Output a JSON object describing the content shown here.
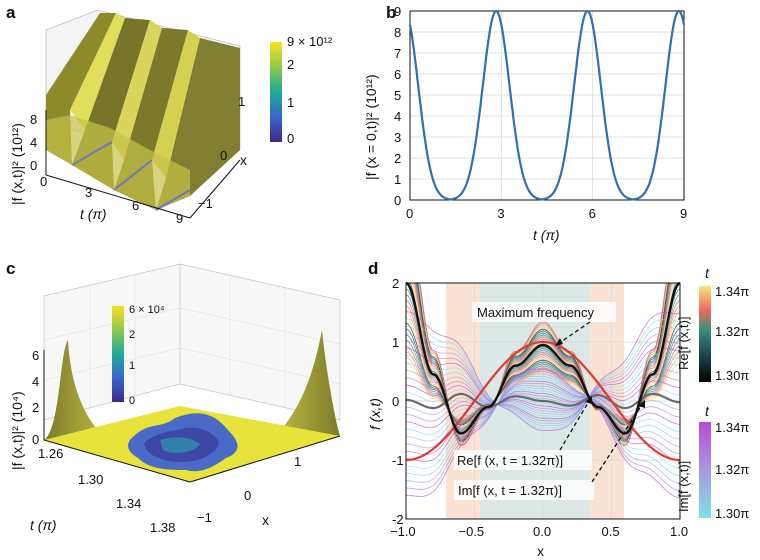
{
  "panels": {
    "a": {
      "letter": "a",
      "ylabel": "|f (x,t)|² (10¹²)",
      "xlabel": "t (π)",
      "x_axis_label": "x",
      "t_ticks": [
        "0",
        "3",
        "6",
        "9"
      ],
      "z_ticks": [
        "0",
        "4",
        "8"
      ],
      "x_ticks": [
        "−1",
        "0",
        "1"
      ],
      "colorbar": {
        "top": "9 × 10¹²",
        "ticks": [
          "2",
          "1",
          "0"
        ]
      }
    },
    "b": {
      "letter": "b",
      "ylabel": "|f (x = 0,t)|² (10¹²)",
      "xlabel": "t (π)"
    },
    "c": {
      "letter": "c",
      "ylabel": "|f (x,t)|² (10⁴)",
      "xlabel": "t (π)",
      "x_axis_label": "x",
      "t_ticks": [
        "1.26",
        "1.30",
        "1.34",
        "1.38"
      ],
      "z_ticks": [
        "0",
        "2",
        "4",
        "6"
      ],
      "x_ticks": [
        "−1",
        "0",
        "1"
      ],
      "colorbar": {
        "top": "6 × 10⁴",
        "ticks": [
          "2",
          "1",
          "0"
        ]
      }
    },
    "d": {
      "letter": "d",
      "ylabel": "f (x,t)",
      "xlabel": "x",
      "ann_max": "Maximum frequency",
      "ann_re": "Re[f (x, t = 1.32π)]",
      "ann_im": "Im[f (x, t = 1.32π)]",
      "cb_re": {
        "var": "t",
        "label": "Re[f (x,t)]",
        "ticks": [
          "1.34π",
          "1.32π",
          "1.30π"
        ]
      },
      "cb_im": {
        "var": "t",
        "label": "Im[f (x,t)]",
        "ticks": [
          "1.34π",
          "1.32π",
          "1.30π"
        ]
      }
    }
  },
  "chart_data": [
    {
      "id": "b",
      "type": "line",
      "title": "",
      "xlabel": "t (π)",
      "ylabel": "|f (x = 0,t)|² (10¹²)",
      "xlim": [
        0,
        9
      ],
      "ylim": [
        0,
        9
      ],
      "xticks": [
        0,
        3,
        6,
        9
      ],
      "yticks": [
        0,
        1,
        2,
        3,
        4,
        5,
        6,
        7,
        8,
        9
      ],
      "series": [
        {
          "name": "|f(0,t)|²",
          "model": "periodic peaks",
          "peak_t": [
            2.83,
            5.83,
            8.83
          ],
          "peak_value": 9,
          "value_at_t0": 7.1
        }
      ]
    },
    {
      "id": "d",
      "type": "line",
      "title": "",
      "xlabel": "x",
      "ylabel": "f (x,t)",
      "xlim": [
        -1,
        1
      ],
      "ylim": [
        -2,
        2
      ],
      "xticks": [
        -1.0,
        -0.5,
        0.0,
        0.5,
        1.0
      ],
      "yticks": [
        -2,
        -1,
        0,
        1,
        2
      ],
      "series": [
        {
          "name": "Re[f (x, t = 1.32π)]",
          "color": "#111111",
          "x": [
            -1,
            -0.8,
            -0.6,
            -0.4,
            -0.2,
            0,
            0.2,
            0.4,
            0.6,
            0.8,
            1
          ],
          "values": [
            2,
            0.45,
            -0.55,
            -0.1,
            0.6,
            0.95,
            0.6,
            -0.1,
            -0.55,
            0.45,
            2
          ]
        },
        {
          "name": "Im[f (x, t = 1.32π)]",
          "color": "#6a6a6a",
          "x": [
            -1,
            -0.8,
            -0.6,
            -0.4,
            -0.2,
            0,
            0.2,
            0.4,
            0.6,
            0.8,
            1
          ],
          "values": [
            0.02,
            -0.12,
            0.12,
            -0.1,
            0.08,
            0,
            -0.08,
            0.1,
            -0.12,
            0.12,
            -0.02
          ]
        },
        {
          "name": "Maximum frequency",
          "color": "#e03a2f",
          "x": [
            -1,
            -0.5,
            0,
            0.5,
            1
          ],
          "values": [
            -1,
            0,
            1,
            0,
            -1
          ]
        }
      ]
    }
  ]
}
